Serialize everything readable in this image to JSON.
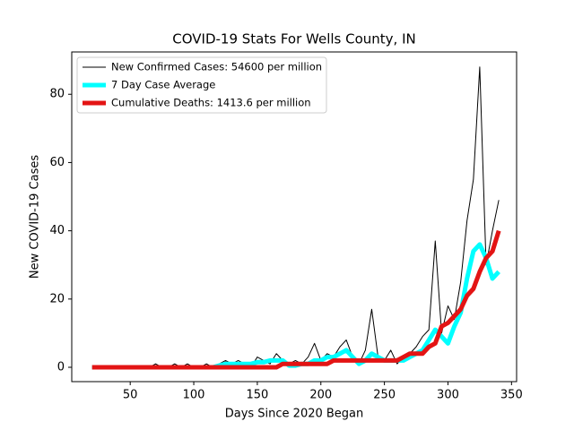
{
  "chart_data": {
    "type": "line",
    "title": "COVID-19 Stats For Wells County, IN",
    "x_label": "Days Since 2020 Began",
    "y_label": "New COVID-19 Cases",
    "legend": "upper left",
    "x": [
      20,
      25,
      30,
      35,
      40,
      45,
      50,
      55,
      60,
      65,
      70,
      75,
      80,
      85,
      90,
      95,
      100,
      105,
      110,
      115,
      120,
      125,
      130,
      135,
      140,
      145,
      150,
      155,
      160,
      165,
      170,
      175,
      180,
      185,
      190,
      195,
      200,
      205,
      210,
      215,
      220,
      225,
      230,
      235,
      240,
      245,
      250,
      255,
      260,
      265,
      270,
      275,
      280,
      285,
      290,
      295,
      300,
      305,
      310,
      315,
      320,
      325,
      330,
      335,
      340
    ],
    "series": [
      {
        "name": "New Confirmed Cases: 54600 per million",
        "color": "#000000",
        "width": 1,
        "values": [
          0,
          0,
          0,
          0,
          0,
          0,
          0,
          0,
          0,
          0,
          1,
          0,
          0,
          1,
          0,
          1,
          0,
          0,
          1,
          0,
          1,
          2,
          1,
          2,
          1,
          0,
          3,
          2,
          1,
          4,
          2,
          1,
          2,
          1,
          3,
          7,
          2,
          4,
          3,
          6,
          8,
          3,
          1,
          5,
          17,
          3,
          2,
          5,
          1,
          3,
          4,
          6,
          9,
          11,
          37,
          10,
          18,
          14,
          25,
          43,
          55,
          88,
          30,
          40,
          49
        ]
      },
      {
        "name": "7 Day Case Average",
        "color": "#00ffff",
        "width": 5,
        "values": [
          0,
          0,
          0,
          0,
          0,
          0,
          0,
          0,
          0,
          0,
          0,
          0,
          0,
          0,
          0,
          0,
          0,
          0,
          0,
          0,
          0.5,
          1,
          1,
          1,
          1,
          1,
          1.5,
          1.5,
          2,
          2,
          2,
          0.5,
          0.5,
          1,
          1,
          2,
          2,
          3,
          3,
          4,
          5,
          3,
          1,
          2,
          4,
          3,
          2,
          2,
          2,
          2,
          3,
          4,
          5,
          8,
          11,
          9,
          7,
          12,
          16,
          26,
          34,
          36,
          32,
          26,
          28
        ]
      },
      {
        "name": "Cumulative Deaths: 1413.6 per million",
        "color": "#e31414",
        "width": 5,
        "values": [
          0,
          0,
          0,
          0,
          0,
          0,
          0,
          0,
          0,
          0,
          0,
          0,
          0,
          0,
          0,
          0,
          0,
          0,
          0,
          0,
          0,
          0,
          0,
          0,
          0,
          0,
          0,
          0,
          0,
          0,
          1,
          1,
          1,
          1,
          1,
          1,
          1,
          1,
          2,
          2,
          2,
          2,
          2,
          2,
          2,
          2,
          2,
          2,
          2,
          3,
          4,
          4,
          4,
          6,
          7,
          12,
          13,
          15,
          17,
          21,
          23,
          28,
          32,
          34,
          40
        ]
      }
    ],
    "xlim": [
      4,
      354
    ],
    "ylim": [
      -4.2,
      92.4
    ],
    "xticks": [
      50,
      100,
      150,
      200,
      250,
      300,
      350
    ],
    "yticks": [
      0,
      20,
      40,
      60,
      80
    ]
  }
}
